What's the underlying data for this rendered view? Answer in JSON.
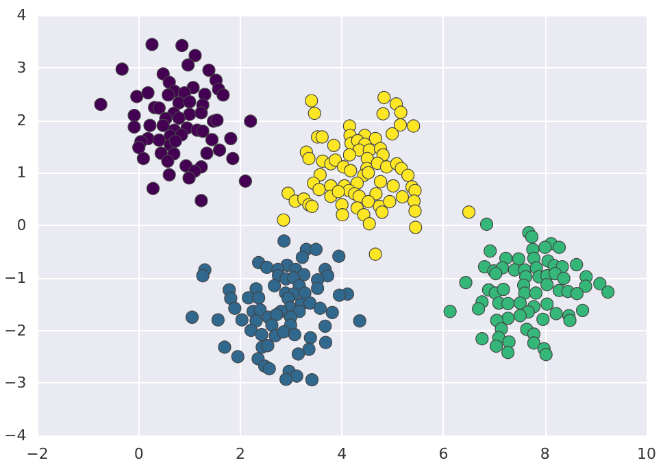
{
  "chart_data": {
    "type": "scatter",
    "xlim": [
      -2,
      10
    ],
    "ylim": [
      -4,
      4
    ],
    "xticks": [
      -2,
      0,
      2,
      4,
      6,
      8,
      10
    ],
    "yticks": [
      -4,
      -3,
      -2,
      -1,
      0,
      1,
      2,
      3,
      4
    ],
    "grid": true,
    "marker": "circle",
    "series": [
      {
        "color": "#440154",
        "x": [
          0.26,
          0.85,
          1.11,
          0.97,
          -0.33,
          1.38,
          0.48,
          1.52,
          0.6,
          1.57,
          1.66,
          1.07,
          -0.04,
          0.18,
          0.7,
          0.9,
          1.3,
          0.58,
          -0.75,
          0.31,
          0.4,
          1.26,
          0.79,
          1.0,
          -0.09,
          0.69,
          1.0,
          1.23,
          0.53,
          0.79,
          1.47,
          1.54,
          2.2,
          -0.09,
          0.22,
          0.48,
          0.7,
          0.95,
          1.15,
          1.26,
          0.62,
          0.84,
          0.18,
          0.4,
          0.04,
          0.0,
          1.44,
          1.81,
          0.62,
          0.72,
          1.59,
          1.34,
          0.44,
          0.69,
          0.09,
          0.57,
          1.85,
          0.93,
          1.23,
          1.1,
          0.99,
          0.6,
          2.1,
          0.28,
          1.23
        ],
        "values": [
          3.44,
          3.42,
          3.23,
          3.05,
          2.97,
          2.95,
          2.88,
          2.76,
          2.72,
          2.59,
          2.48,
          2.62,
          2.45,
          2.52,
          2.55,
          2.52,
          2.49,
          2.48,
          2.3,
          2.24,
          2.23,
          2.29,
          2.33,
          2.35,
          2.09,
          2.13,
          2.11,
          2.14,
          2.03,
          2.04,
          1.98,
          2.0,
          1.98,
          1.87,
          1.9,
          1.9,
          1.81,
          1.85,
          1.81,
          1.79,
          1.7,
          1.72,
          1.65,
          1.62,
          1.59,
          1.48,
          1.63,
          1.65,
          1.53,
          1.6,
          1.43,
          1.37,
          1.37,
          1.36,
          1.27,
          1.22,
          1.27,
          1.13,
          1.11,
          1.03,
          0.9,
          0.96,
          0.84,
          0.7,
          0.47
        ]
      },
      {
        "color": "#31688e",
        "x": [
          2.86,
          3.3,
          3.49,
          3.22,
          3.94,
          2.36,
          2.52,
          2.92,
          2.74,
          1.3,
          1.26,
          3.09,
          3.25,
          2.75,
          2.9,
          3.05,
          3.67,
          3.72,
          3.52,
          2.67,
          3.16,
          3.52,
          1.78,
          2.31,
          2.89,
          3.05,
          3.27,
          4.11,
          3.95,
          1.81,
          2.16,
          2.36,
          2.94,
          1.89,
          3.2,
          3.37,
          2.98,
          2.8,
          3.57,
          3.81,
          2.25,
          2.39,
          3.16,
          1.05,
          1.56,
          2.03,
          2.31,
          2.55,
          2.71,
          2.99,
          4.35,
          2.62,
          2.99,
          3.67,
          2.21,
          2.42,
          2.69,
          2.85,
          3.07,
          3.38,
          3.35,
          3.68,
          1.69,
          2.43,
          2.54,
          3.14,
          1.95,
          2.35,
          2.48,
          2.57,
          2.96,
          3.11,
          2.9,
          3.41
        ],
        "values": [
          -0.3,
          -0.46,
          -0.46,
          -0.61,
          -0.59,
          -0.71,
          -0.8,
          -0.76,
          -0.84,
          -0.85,
          -0.96,
          -0.84,
          -0.94,
          -0.96,
          -1.02,
          -1.0,
          -0.84,
          -0.96,
          -1.04,
          -1.15,
          -1.15,
          -1.2,
          -1.23,
          -1.21,
          -1.29,
          -1.31,
          -1.29,
          -1.31,
          -1.33,
          -1.39,
          -1.38,
          -1.38,
          -1.39,
          -1.58,
          -1.5,
          -1.48,
          -1.57,
          -1.64,
          -1.58,
          -1.66,
          -1.64,
          -1.61,
          -1.64,
          -1.75,
          -1.8,
          -1.8,
          -1.82,
          -1.75,
          -1.7,
          -1.75,
          -1.82,
          -1.9,
          -1.9,
          -1.92,
          -2.0,
          -2.08,
          -2.1,
          -2.03,
          -2.08,
          -2.14,
          -2.36,
          -2.23,
          -2.32,
          -2.32,
          -2.29,
          -2.45,
          -2.5,
          -2.54,
          -2.68,
          -2.73,
          -2.78,
          -2.87,
          -2.93,
          -2.94
        ]
      },
      {
        "color": "#35b779",
        "x": [
          6.85,
          7.68,
          7.74,
          8.12,
          8.28,
          8.0,
          7.76,
          6.92,
          7.23,
          7.48,
          7.78,
          8.06,
          8.62,
          6.81,
          6.99,
          7.16,
          7.4,
          7.6,
          7.83,
          8.18,
          8.34,
          7.03,
          7.62,
          7.88,
          8.04,
          8.2,
          8.37,
          6.44,
          8.81,
          8.8,
          9.08,
          9.24,
          8.04,
          7.58,
          6.89,
          7.02,
          7.18,
          7.6,
          7.82,
          8.28,
          8.45,
          8.63,
          6.76,
          7.09,
          7.27,
          7.51,
          7.78,
          8.04,
          6.69,
          6.13,
          7.67,
          7.96,
          8.22,
          8.47,
          8.74,
          7.27,
          7.51,
          8.49,
          7.05,
          7.14,
          7.64,
          7.78,
          6.76,
          7.09,
          7.29,
          7.78,
          7.04,
          7.98,
          7.27,
          8.02
        ],
        "values": [
          0.02,
          -0.14,
          -0.22,
          -0.35,
          -0.42,
          -0.42,
          -0.46,
          -0.49,
          -0.63,
          -0.64,
          -0.63,
          -0.68,
          -0.75,
          -0.79,
          -0.87,
          -0.81,
          -0.85,
          -0.85,
          -0.81,
          -0.77,
          -0.79,
          -0.92,
          -0.98,
          -0.98,
          -0.96,
          -0.92,
          -1.01,
          -1.09,
          -0.98,
          -1.16,
          -1.11,
          -1.27,
          -1.13,
          -1.14,
          -1.23,
          -1.29,
          -1.22,
          -1.29,
          -1.29,
          -1.24,
          -1.26,
          -1.3,
          -1.46,
          -1.48,
          -1.49,
          -1.48,
          -1.55,
          -1.5,
          -1.59,
          -1.64,
          -1.65,
          -1.79,
          -1.68,
          -1.72,
          -1.62,
          -1.77,
          -1.72,
          -1.81,
          -1.81,
          -1.97,
          -1.98,
          -2.07,
          -2.16,
          -2.14,
          -2.22,
          -2.24,
          -2.3,
          -2.35,
          -2.42,
          -2.46
        ]
      },
      {
        "color": "#fde725",
        "x": [
          3.4,
          3.46,
          4.83,
          5.07,
          5.16,
          4.81,
          5.15,
          5.41,
          4.15,
          4.99,
          3.52,
          3.61,
          4.16,
          4.45,
          4.66,
          3.84,
          4.18,
          4.31,
          4.45,
          4.34,
          4.54,
          4.76,
          3.3,
          3.35,
          4.15,
          4.5,
          4.81,
          3.62,
          3.78,
          3.87,
          4.03,
          4.17,
          4.49,
          4.7,
          4.88,
          5.08,
          5.17,
          5.3,
          3.57,
          4.43,
          4.52,
          3.44,
          3.55,
          3.78,
          4.3,
          4.76,
          5.01,
          5.38,
          5.44,
          4.05,
          4.14,
          2.94,
          3.08,
          3.25,
          3.35,
          3.41,
          3.78,
          3.93,
          4.25,
          4.34,
          4.67,
          4.52,
          4.74,
          4.94,
          5.19,
          5.42,
          4.0,
          4.3,
          4.01,
          4.43,
          4.79,
          5.44,
          4.54,
          2.85,
          5.45,
          4.66,
          6.5
        ],
        "values": [
          2.37,
          2.13,
          2.43,
          2.31,
          2.15,
          2.12,
          1.91,
          1.89,
          1.89,
          1.74,
          1.68,
          1.68,
          1.71,
          1.71,
          1.65,
          1.52,
          1.56,
          1.61,
          1.54,
          1.43,
          1.43,
          1.46,
          1.39,
          1.27,
          1.34,
          1.27,
          1.34,
          1.22,
          1.17,
          1.24,
          1.11,
          1.04,
          1.08,
          1.18,
          1.11,
          1.17,
          1.08,
          0.95,
          0.96,
          0.95,
          1.0,
          0.8,
          0.68,
          0.75,
          0.8,
          0.83,
          0.75,
          0.73,
          0.66,
          0.75,
          0.66,
          0.61,
          0.46,
          0.5,
          0.39,
          0.36,
          0.55,
          0.64,
          0.6,
          0.55,
          0.6,
          0.45,
          0.36,
          0.45,
          0.54,
          0.46,
          0.39,
          0.33,
          0.2,
          0.2,
          0.25,
          0.27,
          0.03,
          0.1,
          -0.04,
          -0.55,
          0.25
        ]
      }
    ]
  }
}
